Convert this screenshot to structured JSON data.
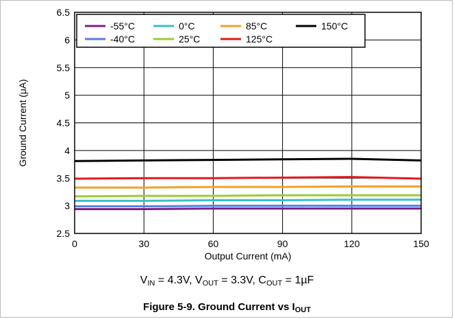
{
  "chart_data": {
    "type": "line",
    "xlabel": "Output Current (mA)",
    "ylabel": "Ground Current (μA)",
    "xlim": [
      0,
      150
    ],
    "ylim": [
      2.5,
      6.5
    ],
    "xticks": [
      0,
      30,
      60,
      90,
      120,
      150
    ],
    "yticks": [
      2.5,
      3,
      3.5,
      4,
      4.5,
      5,
      5.5,
      6,
      6.5
    ],
    "grid": true,
    "legend_position": "top-left",
    "x": [
      0,
      30,
      60,
      90,
      120,
      150
    ],
    "series": [
      {
        "name": "-55°C",
        "color": "#7b1f86",
        "values": [
          2.94,
          2.94,
          2.95,
          2.95,
          2.95,
          2.95
        ]
      },
      {
        "name": "-40°C",
        "color": "#4f7fe6",
        "values": [
          2.99,
          2.99,
          3.0,
          3.0,
          3.0,
          3.0
        ]
      },
      {
        "name": "0°C",
        "color": "#36c1c6",
        "values": [
          3.09,
          3.09,
          3.1,
          3.1,
          3.11,
          3.11
        ]
      },
      {
        "name": "25°C",
        "color": "#9acd32",
        "values": [
          3.17,
          3.18,
          3.18,
          3.19,
          3.19,
          3.19
        ]
      },
      {
        "name": "85°C",
        "color": "#f5a021",
        "values": [
          3.33,
          3.33,
          3.34,
          3.34,
          3.35,
          3.35
        ]
      },
      {
        "name": "125°C",
        "color": "#e8161b",
        "values": [
          3.49,
          3.5,
          3.5,
          3.51,
          3.52,
          3.49
        ]
      },
      {
        "name": "150°C",
        "color": "#000000",
        "values": [
          3.81,
          3.82,
          3.83,
          3.84,
          3.85,
          3.82
        ]
      }
    ]
  },
  "captions": {
    "conditions": {
      "v_label": "V",
      "v_in_sub": "IN",
      "v_in_value": " = 4.3V, ",
      "v_out_label": "V",
      "v_out_sub": "OUT",
      "v_out_value": " = 3.3V, ",
      "c_out_label": "C",
      "c_out_sub": "OUT",
      "c_out_value": " = 1µF"
    },
    "figure": {
      "prefix": "Figure 5-9. Ground Current vs I",
      "sub": "OUT"
    }
  }
}
